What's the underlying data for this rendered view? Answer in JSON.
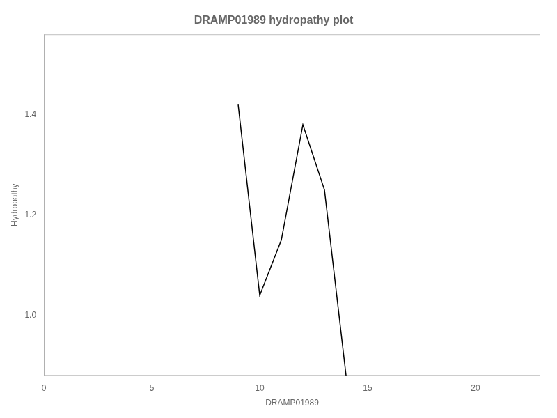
{
  "chart_data": {
    "type": "line",
    "title": "DRAMP01989 hydropathy plot",
    "xlabel": "DRAMP01989",
    "ylabel": "Hydropathy",
    "x": [
      9,
      10,
      11,
      12,
      13,
      14
    ],
    "values": [
      1.42,
      1.04,
      1.15,
      1.38,
      1.25,
      0.88
    ],
    "color": "#000000",
    "xlim": [
      0,
      23
    ],
    "ylim": [
      0.88,
      1.56
    ],
    "xticks": [
      0,
      5,
      10,
      15,
      20
    ],
    "yticks": [
      {
        "value": 1.0,
        "label": "1.0"
      },
      1.2,
      1.4
    ],
    "grid": false
  }
}
